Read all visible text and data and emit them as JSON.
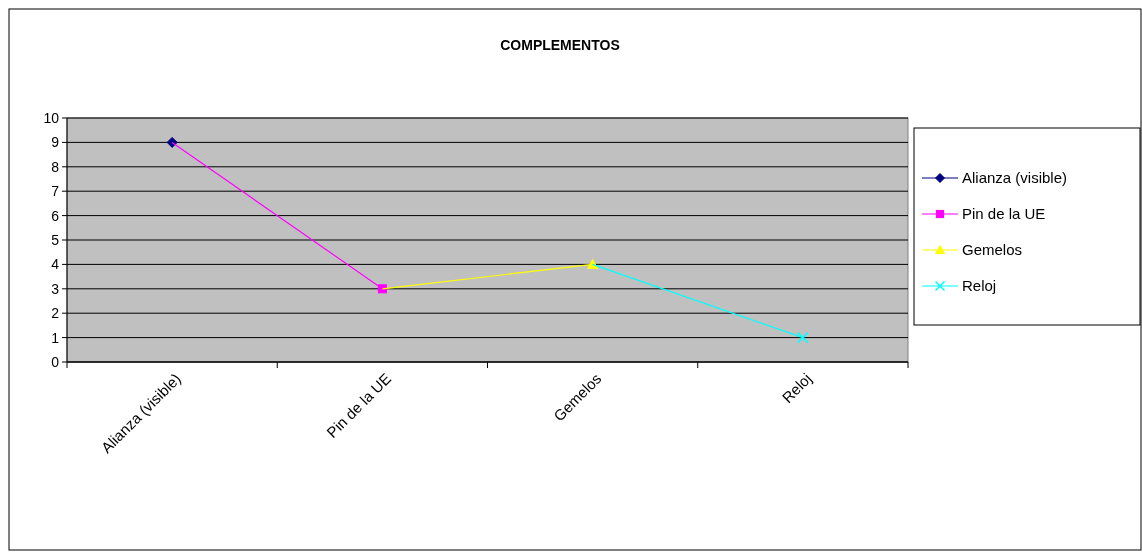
{
  "chart_data": {
    "type": "line",
    "title": "COMPLEMENTOS",
    "categories": [
      "Alianza (visible)",
      "Pin de la UE",
      "Gemelos",
      "Reloj"
    ],
    "series": [
      {
        "name": "Alianza (visible)",
        "color": "#000080",
        "marker": "diamond",
        "values": [
          9,
          null,
          null,
          null
        ]
      },
      {
        "name": "Pin de la UE",
        "color": "#ff00ff",
        "marker": "square",
        "values": [
          9,
          3,
          null,
          null
        ]
      },
      {
        "name": "Gemelos",
        "color": "#ffff00",
        "marker": "triangle",
        "values": [
          null,
          3,
          4,
          null
        ]
      },
      {
        "name": "Reloj",
        "color": "#00ffff",
        "marker": "cross",
        "values": [
          null,
          null,
          4,
          1
        ]
      }
    ],
    "ylim": [
      0,
      10
    ],
    "yticks": [
      0,
      1,
      2,
      3,
      4,
      5,
      6,
      7,
      8,
      9,
      10
    ],
    "grid": "y",
    "legend": "right"
  }
}
